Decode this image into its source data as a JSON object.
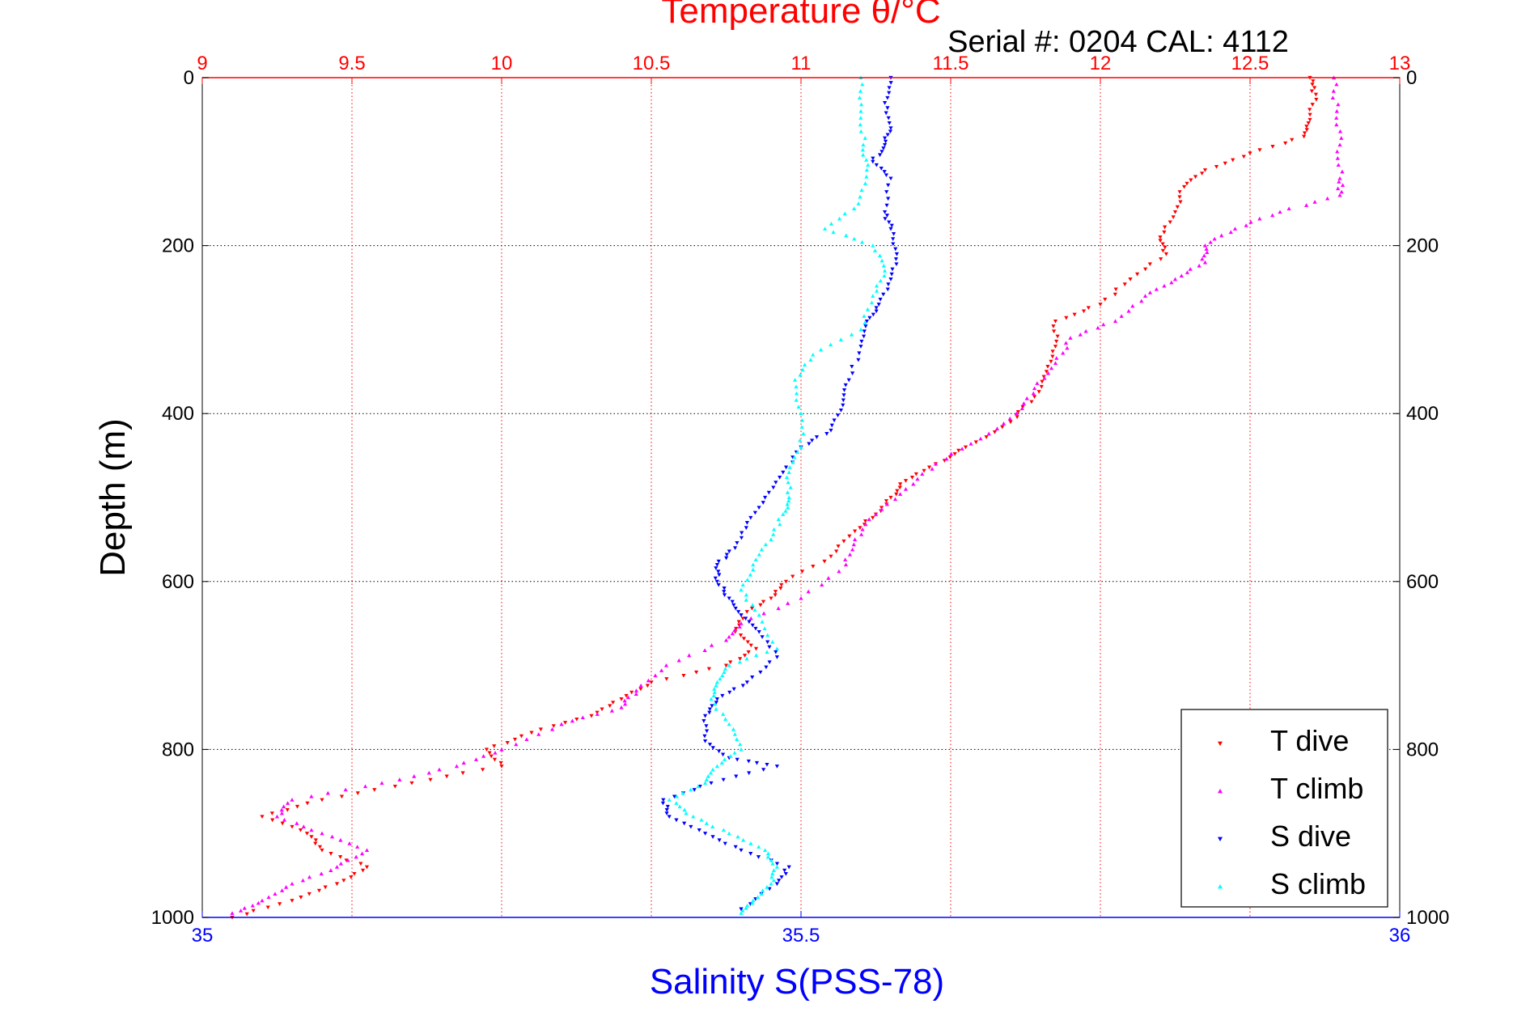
{
  "chart_data": {
    "type": "scatter",
    "top_title": "Temperature θ/°C",
    "subtitle": "Serial #: 0204  CAL: 4112",
    "bottom_title": "Salinity S(PSS-78)",
    "ylabel": "Depth (m)",
    "temperature_axis": {
      "range": [
        9,
        13
      ],
      "ticks": [
        "9",
        "9.5",
        "10",
        "10.5",
        "11",
        "11.5",
        "12",
        "12.5",
        "13"
      ],
      "color": "#ff0000"
    },
    "salinity_axis": {
      "range": [
        35,
        36
      ],
      "ticks": [
        "35",
        "35.5",
        "36"
      ],
      "color": "#0000ff"
    },
    "depth_axis": {
      "range": [
        0,
        1000
      ],
      "reversed": true,
      "ticks": [
        "0",
        "200",
        "400",
        "600",
        "800",
        "1000"
      ]
    },
    "grid": true,
    "legend": {
      "position": "bottom-right",
      "entries": [
        {
          "label": "T dive",
          "color": "#ff0000",
          "marker": "triangle-down"
        },
        {
          "label": "T climb",
          "color": "#ff00ff",
          "marker": "triangle-up"
        },
        {
          "label": "S dive",
          "color": "#0000ff",
          "marker": "triangle-down"
        },
        {
          "label": "S climb",
          "color": "#00ffff",
          "marker": "triangle-up"
        }
      ]
    },
    "series": [
      {
        "name": "T dive",
        "axis": "temperature",
        "color": "#ff0000",
        "marker": "triangle-down",
        "points": [
          [
            12.7,
            0
          ],
          [
            12.72,
            20
          ],
          [
            12.7,
            50
          ],
          [
            12.68,
            70
          ],
          [
            12.5,
            90
          ],
          [
            12.35,
            110
          ],
          [
            12.28,
            130
          ],
          [
            12.25,
            160
          ],
          [
            12.2,
            190
          ],
          [
            12.22,
            210
          ],
          [
            12.1,
            240
          ],
          [
            12.0,
            270
          ],
          [
            11.85,
            290
          ],
          [
            11.85,
            320
          ],
          [
            11.82,
            350
          ],
          [
            11.78,
            380
          ],
          [
            11.7,
            410
          ],
          [
            11.55,
            440
          ],
          [
            11.45,
            460
          ],
          [
            11.35,
            480
          ],
          [
            11.3,
            500
          ],
          [
            11.25,
            520
          ],
          [
            11.18,
            540
          ],
          [
            11.1,
            570
          ],
          [
            10.95,
            600
          ],
          [
            10.9,
            620
          ],
          [
            10.8,
            640
          ],
          [
            10.78,
            660
          ],
          [
            10.85,
            680
          ],
          [
            10.75,
            700
          ],
          [
            10.5,
            720
          ],
          [
            10.4,
            740
          ],
          [
            10.3,
            760
          ],
          [
            10.1,
            780
          ],
          [
            9.95,
            800
          ],
          [
            10.0,
            820
          ],
          [
            9.7,
            840
          ],
          [
            9.4,
            860
          ],
          [
            9.2,
            880
          ],
          [
            9.35,
            900
          ],
          [
            9.4,
            920
          ],
          [
            9.55,
            940
          ],
          [
            9.45,
            960
          ],
          [
            9.3,
            980
          ],
          [
            9.1,
            1000
          ]
        ]
      },
      {
        "name": "T climb",
        "axis": "temperature",
        "color": "#ff00ff",
        "marker": "triangle-up",
        "points": [
          [
            12.78,
            0
          ],
          [
            12.79,
            40
          ],
          [
            12.8,
            80
          ],
          [
            12.8,
            120
          ],
          [
            12.8,
            140
          ],
          [
            12.6,
            160
          ],
          [
            12.45,
            180
          ],
          [
            12.35,
            200
          ],
          [
            12.35,
            220
          ],
          [
            12.25,
            240
          ],
          [
            12.15,
            260
          ],
          [
            12.05,
            290
          ],
          [
            11.9,
            310
          ],
          [
            11.85,
            340
          ],
          [
            11.78,
            370
          ],
          [
            11.72,
            400
          ],
          [
            11.6,
            430
          ],
          [
            11.45,
            460
          ],
          [
            11.35,
            490
          ],
          [
            11.25,
            520
          ],
          [
            11.18,
            550
          ],
          [
            11.15,
            580
          ],
          [
            11.0,
            620
          ],
          [
            10.8,
            650
          ],
          [
            10.75,
            670
          ],
          [
            10.55,
            700
          ],
          [
            10.45,
            730
          ],
          [
            10.4,
            750
          ],
          [
            10.2,
            770
          ],
          [
            10.0,
            800
          ],
          [
            9.85,
            820
          ],
          [
            9.6,
            840
          ],
          [
            9.3,
            860
          ],
          [
            9.25,
            880
          ],
          [
            9.4,
            900
          ],
          [
            9.55,
            920
          ],
          [
            9.45,
            940
          ],
          [
            9.3,
            960
          ],
          [
            9.2,
            980
          ],
          [
            9.1,
            995
          ]
        ]
      },
      {
        "name": "S dive",
        "axis": "salinity",
        "color": "#0000ff",
        "marker": "triangle-down",
        "points": [
          [
            35.575,
            0
          ],
          [
            35.57,
            30
          ],
          [
            35.575,
            60
          ],
          [
            35.57,
            80
          ],
          [
            35.56,
            100
          ],
          [
            35.575,
            120
          ],
          [
            35.57,
            160
          ],
          [
            35.575,
            180
          ],
          [
            35.58,
            210
          ],
          [
            35.575,
            240
          ],
          [
            35.565,
            270
          ],
          [
            35.555,
            290
          ],
          [
            35.55,
            320
          ],
          [
            35.54,
            360
          ],
          [
            35.535,
            390
          ],
          [
            35.525,
            420
          ],
          [
            35.5,
            440
          ],
          [
            35.485,
            470
          ],
          [
            35.47,
            500
          ],
          [
            35.455,
            530
          ],
          [
            35.445,
            560
          ],
          [
            35.43,
            580
          ],
          [
            35.43,
            600
          ],
          [
            35.44,
            620
          ],
          [
            35.45,
            640
          ],
          [
            35.465,
            660
          ],
          [
            35.48,
            690
          ],
          [
            35.455,
            720
          ],
          [
            35.43,
            740
          ],
          [
            35.42,
            760
          ],
          [
            35.42,
            790
          ],
          [
            35.44,
            810
          ],
          [
            35.48,
            820
          ],
          [
            35.425,
            840
          ],
          [
            35.385,
            860
          ],
          [
            35.39,
            880
          ],
          [
            35.42,
            900
          ],
          [
            35.45,
            920
          ],
          [
            35.49,
            940
          ],
          [
            35.48,
            960
          ],
          [
            35.45,
            990
          ]
        ]
      },
      {
        "name": "S climb",
        "axis": "salinity",
        "color": "#00ffff",
        "marker": "triangle-up",
        "points": [
          [
            35.55,
            0
          ],
          [
            35.55,
            40
          ],
          [
            35.552,
            80
          ],
          [
            35.555,
            110
          ],
          [
            35.548,
            150
          ],
          [
            35.52,
            180
          ],
          [
            35.56,
            200
          ],
          [
            35.57,
            230
          ],
          [
            35.56,
            260
          ],
          [
            35.55,
            300
          ],
          [
            35.51,
            330
          ],
          [
            35.495,
            360
          ],
          [
            35.5,
            400
          ],
          [
            35.5,
            440
          ],
          [
            35.49,
            470
          ],
          [
            35.49,
            500
          ],
          [
            35.485,
            520
          ],
          [
            35.475,
            550
          ],
          [
            35.46,
            580
          ],
          [
            35.45,
            610
          ],
          [
            35.465,
            640
          ],
          [
            35.48,
            680
          ],
          [
            35.44,
            700
          ],
          [
            35.43,
            720
          ],
          [
            35.425,
            740
          ],
          [
            35.44,
            770
          ],
          [
            35.45,
            800
          ],
          [
            35.43,
            820
          ],
          [
            35.42,
            840
          ],
          [
            35.39,
            860
          ],
          [
            35.41,
            880
          ],
          [
            35.44,
            900
          ],
          [
            35.47,
            920
          ],
          [
            35.48,
            940
          ],
          [
            35.475,
            960
          ],
          [
            35.46,
            980
          ],
          [
            35.45,
            995
          ]
        ]
      }
    ]
  }
}
